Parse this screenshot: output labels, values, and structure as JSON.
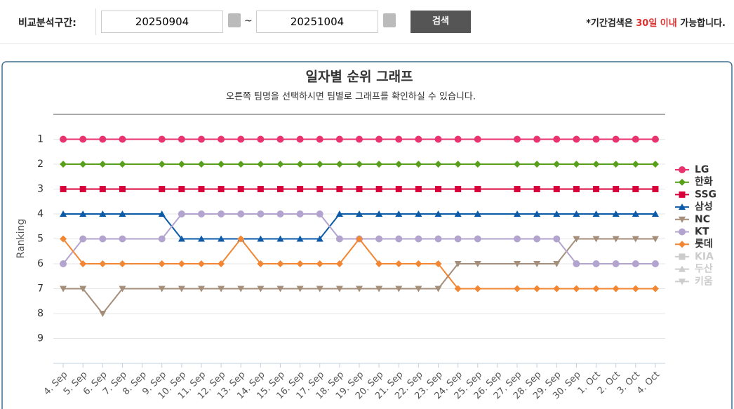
{
  "header": {
    "label": "비교분석구간:",
    "start_date": "20250904",
    "separator": "~",
    "end_date": "20251004",
    "button": "검색",
    "note_prefix": "*기간검색은 ",
    "note_highlight": "30일 이내",
    "note_suffix": " 가능합니다."
  },
  "chart_data": {
    "type": "line",
    "title": "일자별 순위 그래프",
    "subtitle": "오른쪽 팀명을 선택하시면 팀별로 그래프를 확인하실 수 있습니다.",
    "y_label": "Ranking",
    "categories": [
      "4. Sep",
      "5. Sep",
      "6. Sep",
      "7. Sep",
      "8. Sep",
      "9. Sep",
      "10. Sep",
      "11. Sep",
      "12. Sep",
      "13. Sep",
      "14. Sep",
      "15. Sep",
      "16. Sep",
      "17. Sep",
      "18. Sep",
      "19. Sep",
      "20. Sep",
      "21. Sep",
      "22. Sep",
      "23. Sep",
      "24. Sep",
      "25. Sep",
      "26. Sep",
      "27. Sep",
      "28. Sep",
      "29. Sep",
      "30. Sep",
      "1. Oct",
      "2. Oct",
      "3. Oct",
      "4. Oct"
    ],
    "ylim": [
      0,
      10
    ],
    "y_reversed": true,
    "yticks": [
      1,
      2,
      3,
      4,
      5,
      6,
      7,
      8,
      9
    ],
    "grid": true,
    "connect_nulls": true,
    "legend": "right",
    "series": [
      {
        "name": "LG",
        "color": "#e8336f",
        "marker": "circle",
        "values": [
          1,
          1,
          1,
          1,
          null,
          1,
          1,
          1,
          1,
          1,
          1,
          1,
          1,
          1,
          1,
          1,
          1,
          1,
          1,
          1,
          1,
          1,
          null,
          1,
          1,
          1,
          1,
          1,
          1,
          1,
          1
        ]
      },
      {
        "name": "한화",
        "color": "#58a01c",
        "marker": "diamond",
        "values": [
          2,
          2,
          2,
          2,
          null,
          2,
          2,
          2,
          2,
          2,
          2,
          2,
          2,
          2,
          2,
          2,
          2,
          2,
          2,
          2,
          2,
          2,
          null,
          2,
          2,
          2,
          2,
          2,
          2,
          2,
          2
        ]
      },
      {
        "name": "SSG",
        "color": "#d8003a",
        "marker": "square",
        "values": [
          3,
          3,
          3,
          3,
          null,
          3,
          3,
          3,
          3,
          3,
          3,
          3,
          3,
          3,
          3,
          3,
          3,
          3,
          3,
          3,
          3,
          3,
          null,
          3,
          3,
          3,
          3,
          3,
          3,
          3,
          3
        ]
      },
      {
        "name": "삼성",
        "color": "#0b5aa8",
        "marker": "triangle",
        "values": [
          4,
          4,
          4,
          4,
          null,
          4,
          5,
          5,
          5,
          5,
          5,
          5,
          5,
          5,
          4,
          4,
          4,
          4,
          4,
          4,
          4,
          4,
          null,
          4,
          4,
          4,
          4,
          4,
          4,
          4,
          4
        ]
      },
      {
        "name": "NC",
        "color": "#a58e7a",
        "marker": "triangle-down",
        "values": [
          7,
          7,
          8,
          7,
          null,
          7,
          7,
          7,
          7,
          7,
          7,
          7,
          7,
          7,
          7,
          7,
          7,
          7,
          7,
          7,
          6,
          6,
          null,
          6,
          6,
          6,
          5,
          5,
          5,
          5,
          5
        ]
      },
      {
        "name": "KT",
        "color": "#b3a4cf",
        "marker": "circle",
        "values": [
          6,
          5,
          5,
          5,
          null,
          5,
          4,
          4,
          4,
          4,
          4,
          4,
          4,
          4,
          5,
          5,
          5,
          5,
          5,
          5,
          5,
          5,
          null,
          5,
          5,
          5,
          6,
          6,
          6,
          6,
          6
        ]
      },
      {
        "name": "롯데",
        "color": "#f28632",
        "marker": "diamond",
        "values": [
          5,
          6,
          6,
          6,
          null,
          6,
          6,
          6,
          6,
          5,
          6,
          6,
          6,
          6,
          6,
          5,
          6,
          6,
          6,
          6,
          7,
          7,
          null,
          7,
          7,
          7,
          7,
          7,
          7,
          7,
          7
        ]
      },
      {
        "name": "KIA",
        "color": "#cccccc",
        "marker": "square",
        "visible": false
      },
      {
        "name": "두산",
        "color": "#cccccc",
        "marker": "triangle",
        "visible": false
      },
      {
        "name": "키움",
        "color": "#cccccc",
        "marker": "triangle-down",
        "visible": false
      }
    ]
  }
}
